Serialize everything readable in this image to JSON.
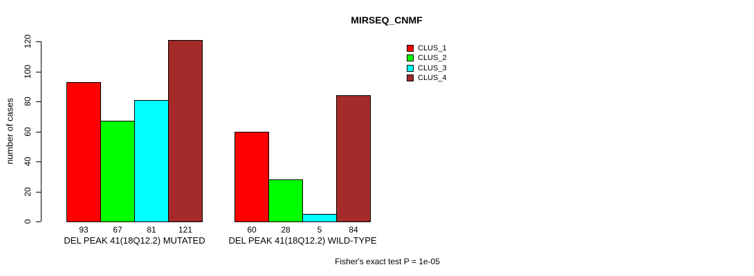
{
  "chart_data": {
    "type": "bar",
    "title": "MIRSEQ_CNMF",
    "ylabel": "number of cases",
    "xlabel": "",
    "ylim": [
      0,
      120
    ],
    "yticks": [
      0,
      20,
      40,
      60,
      80,
      100,
      120
    ],
    "grid": false,
    "legend_position": "top-right",
    "categories": [
      "DEL PEAK 41(18Q12.2) MUTATED",
      "DEL PEAK 41(18Q12.2) WILD-TYPE"
    ],
    "series": [
      {
        "name": "CLUS_1",
        "color": "#FF0000",
        "values": [
          93,
          60
        ]
      },
      {
        "name": "CLUS_2",
        "color": "#00FF00",
        "values": [
          67,
          28
        ]
      },
      {
        "name": "CLUS_3",
        "color": "#00FFFF",
        "values": [
          81,
          5
        ]
      },
      {
        "name": "CLUS_4",
        "color": "#A52A2A",
        "values": [
          121,
          84
        ]
      }
    ],
    "bar_value_labels": [
      [
        93,
        67,
        81,
        121
      ],
      [
        60,
        28,
        5,
        84
      ]
    ],
    "annotation": "Fisher's exact test P = 1e-05"
  }
}
